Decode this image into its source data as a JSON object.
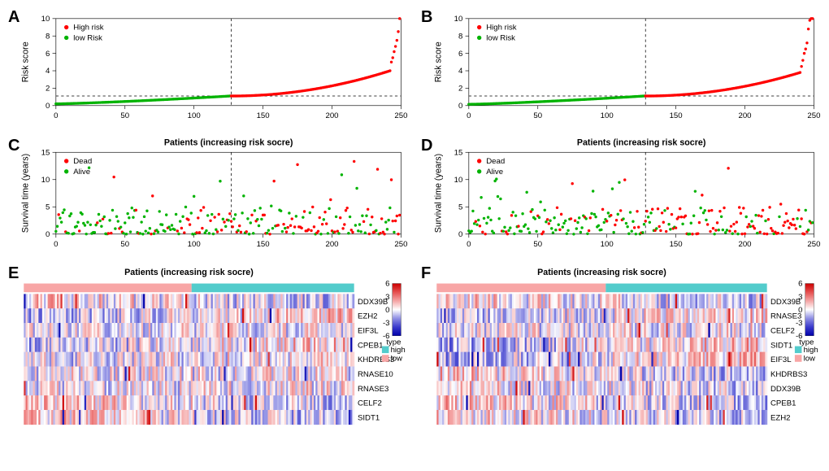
{
  "palette": {
    "high_risk": "#ff0000",
    "low_risk": "#00b300",
    "dead": "#ff0000",
    "alive": "#00b300",
    "type_high": "#53cccc",
    "type_low": "#f8a6a6",
    "heatmap_colors": [
      "#0000aa",
      "#3b3bcc",
      "#8f8fe4",
      "#ffffff",
      "#f4a5a5",
      "#e55050",
      "#cc0000"
    ],
    "heatmap_min": -6,
    "heatmap_max": 6
  },
  "panels": {
    "A": {
      "letter": "A",
      "title": "",
      "ylab": "Risk score",
      "xlab": "",
      "xlim": [
        0,
        250
      ],
      "xticks": [
        0,
        50,
        100,
        150,
        200,
        250
      ],
      "ylim": [
        0,
        10
      ],
      "yticks": [
        0,
        2,
        4,
        6,
        8,
        10
      ],
      "cutoff_x": 127,
      "cutoff_y": 1.1,
      "legend": [
        {
          "label": "High risk",
          "color": "#ff0000"
        },
        {
          "label": "low Risk",
          "color": "#00b300"
        }
      ],
      "data_lo": {
        "n": 127,
        "ystart": 0.2,
        "yend": 1.1
      },
      "data_hi": {
        "n": 123,
        "ystart": 1.1,
        "yend_main": 4.0,
        "tail": [
          5.0,
          5.5,
          6.2,
          6.8,
          7.5,
          8.5,
          10.0
        ]
      }
    },
    "B": {
      "letter": "B",
      "title": "",
      "ylab": "Risk score",
      "xlab": "",
      "xlim": [
        0,
        250
      ],
      "xticks": [
        0,
        50,
        100,
        150,
        200,
        250
      ],
      "ylim": [
        0,
        10
      ],
      "yticks": [
        0,
        2,
        4,
        6,
        8,
        10
      ],
      "cutoff_x": 128,
      "cutoff_y": 1.1,
      "legend": [
        {
          "label": "High risk",
          "color": "#ff0000"
        },
        {
          "label": "low Risk",
          "color": "#00b300"
        }
      ],
      "data_lo": {
        "n": 128,
        "ystart": 0.15,
        "yend": 1.1
      },
      "data_hi": {
        "n": 122,
        "ystart": 1.1,
        "yend_main": 3.8,
        "tail": [
          4.5,
          5.2,
          6.0,
          6.5,
          7.2,
          8.8,
          9.8,
          10.0,
          10.0
        ]
      }
    },
    "C": {
      "letter": "C",
      "title": "Patients (increasing risk socre)",
      "ylab": "Survival time (years)",
      "xlab": "",
      "xlim": [
        0,
        250
      ],
      "xticks": [
        0,
        50,
        100,
        150,
        200,
        250
      ],
      "ylim": [
        0,
        15
      ],
      "yticks": [
        0,
        5,
        10,
        15
      ],
      "cutoff_x": 127,
      "legend": [
        {
          "label": "Dead",
          "color": "#ff0000"
        },
        {
          "label": "Alive",
          "color": "#00b300"
        }
      ],
      "n_points": 250,
      "dead_bias_right": true
    },
    "D": {
      "letter": "D",
      "title": "Patients (increasing risk socre)",
      "ylab": "Survival time (years)",
      "xlab": "",
      "xlim": [
        0,
        250
      ],
      "xticks": [
        0,
        50,
        100,
        150,
        200,
        250
      ],
      "ylim": [
        0,
        15
      ],
      "yticks": [
        0,
        5,
        10,
        15
      ],
      "cutoff_x": 128,
      "legend": [
        {
          "label": "Dead",
          "color": "#ff0000"
        },
        {
          "label": "Alive",
          "color": "#00b300"
        }
      ],
      "n_points": 250,
      "dead_bias_right": true
    },
    "E": {
      "letter": "E",
      "title": "Patients (increasing risk socre)",
      "genes": [
        "DDX39B",
        "EZH2",
        "EIF3L",
        "CPEB1",
        "KHDRBS3",
        "RNASE10",
        "RNASE3",
        "CELF2",
        "SIDT1"
      ],
      "n_cols": 250,
      "split": 127,
      "type_legend": {
        "title": "type",
        "items": [
          {
            "label": "high",
            "color": "#53cccc"
          },
          {
            "label": "low",
            "color": "#f8a6a6"
          }
        ]
      },
      "scale_ticks": [
        -6,
        -3,
        0,
        3,
        6
      ]
    },
    "F": {
      "letter": "F",
      "title": "Patients (increasing risk socre)",
      "genes": [
        "DDX39B",
        "RNASE3",
        "CELF2",
        "SIDT1",
        "EIF3L",
        "KHDRBS3",
        "DDX39B",
        "CPEB1",
        "EZH2"
      ],
      "n_cols": 250,
      "split": 128,
      "type_legend": {
        "title": "type",
        "items": [
          {
            "label": "high",
            "color": "#53cccc"
          },
          {
            "label": "low",
            "color": "#f8a6a6"
          }
        ]
      },
      "scale_ticks": [
        -6,
        -3,
        0,
        3,
        6
      ]
    }
  },
  "layout": {
    "scatter_width": 460,
    "scatter_height": 140,
    "heatmap_width": 460,
    "heatmap_height": 190,
    "marker_r": 1.6,
    "axis_fontsize": 10,
    "tick_fontsize": 9,
    "title_fontsize": 10
  }
}
